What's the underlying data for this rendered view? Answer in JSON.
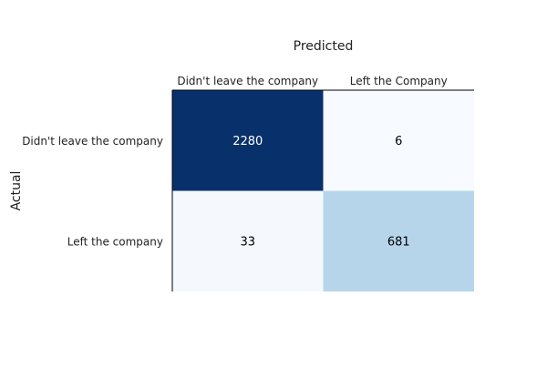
{
  "chart_data": {
    "type": "heatmap",
    "title": "",
    "xlabel": "Predicted",
    "ylabel": "Actual",
    "x_categories": [
      "Didn't leave the company",
      "Left the Company"
    ],
    "y_categories": [
      "Didn't leave the company",
      "Left the company"
    ],
    "values": [
      [
        2280,
        6
      ],
      [
        33,
        681
      ]
    ],
    "x_axis_position": "top",
    "colorscale": "Blues",
    "color_range": [
      6,
      2280
    ],
    "grid": false,
    "legend": "none"
  }
}
